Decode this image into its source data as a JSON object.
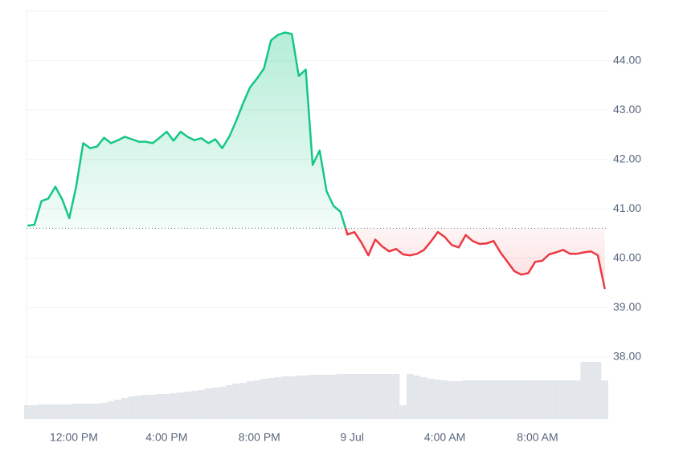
{
  "chart_data": {
    "type": "line",
    "x": [
      10.0,
      10.3,
      10.6,
      10.9,
      11.2,
      11.5,
      11.8,
      12.1,
      12.4,
      12.7,
      13.0,
      13.3,
      13.6,
      13.9,
      14.2,
      14.5,
      14.8,
      15.1,
      15.4,
      15.7,
      16.0,
      16.3,
      16.6,
      16.9,
      17.2,
      17.5,
      17.8,
      18.1,
      18.4,
      18.7,
      19.0,
      19.3,
      19.6,
      19.9,
      20.2,
      20.5,
      20.8,
      21.1,
      21.4,
      21.7,
      22.0,
      22.3,
      22.6,
      22.9,
      23.2,
      23.5,
      23.8,
      24.1,
      24.4,
      24.7,
      25.0,
      25.3,
      25.6,
      25.9,
      26.2,
      26.5,
      26.8,
      27.1,
      27.4,
      27.7,
      28.0,
      28.3,
      28.6,
      28.9,
      29.2,
      29.5,
      29.8,
      30.1,
      30.4,
      30.7,
      31.0,
      31.3,
      31.6,
      31.9,
      32.2,
      32.5,
      32.8,
      33.1,
      33.4,
      33.7,
      34.0,
      34.3,
      34.6,
      34.9
    ],
    "series": [
      {
        "values": [
          40.66,
          40.68,
          41.16,
          41.21,
          41.45,
          41.19,
          40.81,
          41.45,
          42.33,
          42.23,
          42.26,
          42.44,
          42.33,
          42.39,
          42.46,
          42.41,
          42.36,
          42.36,
          42.33,
          42.44,
          42.56,
          42.38,
          42.56,
          42.46,
          42.39,
          42.43,
          42.33,
          42.41,
          42.23,
          42.46,
          42.78,
          43.14,
          43.46,
          43.64,
          43.84,
          44.41,
          44.52,
          44.57,
          44.54,
          43.69,
          43.82,
          41.89,
          42.18,
          41.36,
          41.06,
          40.94,
          40.48,
          40.53,
          40.32,
          40.06,
          40.38,
          40.24,
          40.14,
          40.19,
          40.08,
          40.06,
          40.09,
          40.17,
          40.34,
          40.53,
          40.43,
          40.27,
          40.22,
          40.47,
          40.35,
          40.29,
          40.3,
          40.35,
          40.12,
          39.93,
          39.74,
          39.67,
          39.7,
          39.93,
          39.95,
          40.08,
          40.12,
          40.17,
          40.09,
          40.09,
          40.12,
          40.14,
          40.06,
          39.38
        ]
      }
    ],
    "volume": [
      17,
      17,
      18,
      18,
      18,
      18,
      18,
      19,
      19,
      19,
      19,
      20,
      22,
      24,
      26,
      28,
      29,
      30,
      30,
      31,
      31,
      32,
      33,
      34,
      35,
      36,
      38,
      39,
      40,
      42,
      44,
      45,
      47,
      48,
      50,
      51,
      52,
      53,
      53,
      54,
      54,
      55,
      55,
      55,
      55,
      56,
      56,
      56,
      56,
      56,
      56,
      56,
      56,
      56,
      17,
      56,
      54,
      52,
      50,
      49,
      48,
      47,
      47,
      48,
      48,
      48,
      48,
      48,
      48,
      48,
      48,
      48,
      48,
      48,
      48,
      48,
      48,
      48,
      48,
      48,
      71,
      71,
      71,
      48
    ],
    "vlim": [
      0,
      100
    ],
    "baseline": 40.61,
    "up_color": "#16c784",
    "down_color": "#ea3943",
    "volume_color": "#e3e6ea",
    "xlim": [
      9.957,
      35.05
    ],
    "xticks": [
      {
        "value": 12,
        "label": "12:00 PM"
      },
      {
        "value": 16,
        "label": "4:00 PM"
      },
      {
        "value": 20,
        "label": "8:00 PM"
      },
      {
        "value": 24,
        "label": "9 Jul"
      },
      {
        "value": 28,
        "label": "4:00 AM"
      },
      {
        "value": 32,
        "label": "8:00 AM"
      }
    ],
    "ylim": [
      36.75,
      45
    ],
    "yticks": [
      {
        "value": 38,
        "label": "38.00"
      },
      {
        "value": 39,
        "label": "39.00"
      },
      {
        "value": 40,
        "label": "40.00"
      },
      {
        "value": 41,
        "label": "41.00"
      },
      {
        "value": 42,
        "label": "42.00"
      },
      {
        "value": 43,
        "label": "43.00"
      },
      {
        "value": 44,
        "label": "44.00"
      }
    ],
    "grid": true
  }
}
